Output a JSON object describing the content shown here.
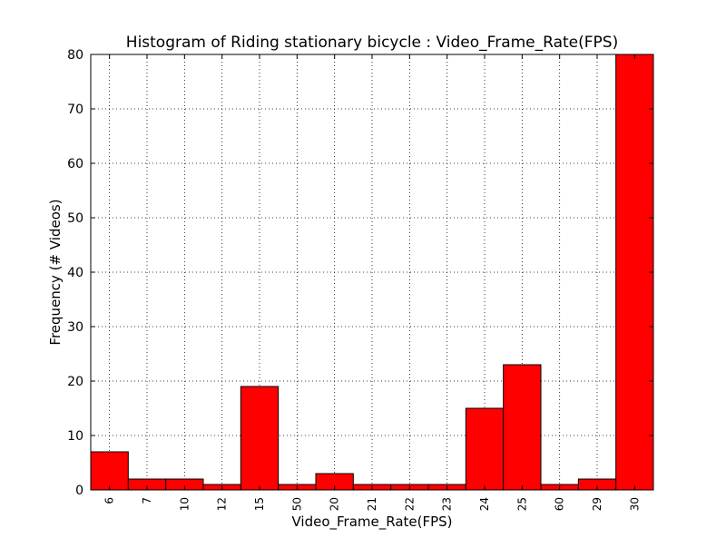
{
  "chart_data": {
    "type": "bar",
    "title": "Histogram of Riding stationary bicycle : Video_Frame_Rate(FPS)",
    "xlabel": "Video_Frame_Rate(FPS)",
    "ylabel": "Frequency (# Videos)",
    "categories": [
      "6",
      "7",
      "10",
      "12",
      "15",
      "50",
      "20",
      "21",
      "22",
      "23",
      "24",
      "25",
      "60",
      "29",
      "30"
    ],
    "values": [
      7,
      2,
      2,
      1,
      19,
      1,
      3,
      1,
      1,
      1,
      15,
      23,
      1,
      2,
      80
    ],
    "ylim": [
      0,
      80
    ],
    "yticks": [
      "0",
      "10",
      "20",
      "30",
      "40",
      "50",
      "60",
      "70",
      "80"
    ],
    "grid": true,
    "bar_color": "#ff0000",
    "edge_color": "#000000"
  }
}
